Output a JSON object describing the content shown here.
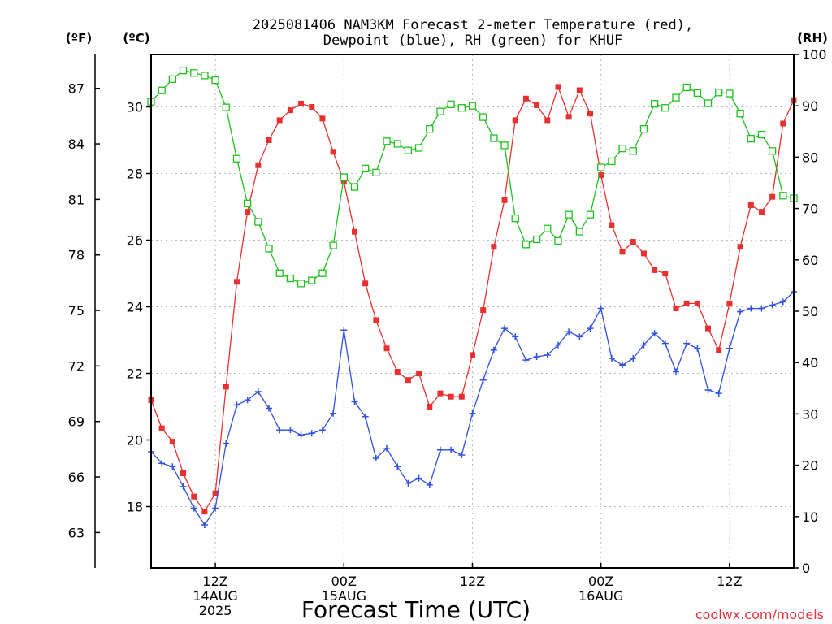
{
  "chart_data": {
    "type": "line",
    "title_lines": [
      "2025081406 NAM3KM Forecast 2-meter Temperature (red),",
      "Dewpoint (blue), RH (green) for KHUF"
    ],
    "xlabel": "Forecast Time (UTC)",
    "watermark": "coolwx.com/models",
    "x_ticks": [
      {
        "hour": 6,
        "lines": [
          "12Z",
          "14AUG",
          "2025"
        ]
      },
      {
        "hour": 18,
        "lines": [
          "00Z",
          "15AUG"
        ]
      },
      {
        "hour": 30,
        "lines": [
          "12Z"
        ]
      },
      {
        "hour": 42,
        "lines": [
          "00Z",
          "16AUG"
        ]
      },
      {
        "hour": 54,
        "lines": [
          "12Z"
        ]
      }
    ],
    "xlim": [
      0,
      60
    ],
    "y_left": {
      "unit_label": "(ºC)",
      "range": [
        16,
        31.5
      ],
      "ticks": [
        18,
        20,
        22,
        24,
        26,
        28,
        30
      ]
    },
    "y_far_left": {
      "unit_label": "(ºF)",
      "ticks": [
        63,
        66,
        69,
        72,
        75,
        78,
        81,
        84,
        87
      ]
    },
    "y_right": {
      "unit_label": "(RH)",
      "range": [
        0,
        100
      ],
      "ticks": [
        0,
        10,
        20,
        30,
        40,
        50,
        60,
        70,
        80,
        90,
        100
      ]
    },
    "grid": true,
    "series": [
      {
        "name": "Temperature",
        "color": "#e83030",
        "axis": "left",
        "marker": "filled-square",
        "values": [
          21.2,
          20.35,
          19.95,
          19.0,
          18.3,
          17.85,
          18.4,
          21.6,
          24.75,
          26.85,
          28.25,
          29.0,
          29.6,
          29.9,
          30.1,
          30.0,
          29.65,
          28.65,
          27.75,
          26.25,
          24.7,
          23.6,
          22.75,
          22.05,
          21.8,
          22.0,
          21.0,
          21.4,
          21.3,
          21.3,
          22.55,
          23.9,
          25.8,
          27.2,
          29.6,
          30.25,
          30.05,
          29.6,
          30.6,
          29.7,
          30.5,
          29.8,
          27.95,
          26.45,
          25.65,
          25.95,
          25.6,
          25.1,
          25.0,
          23.95,
          24.1,
          24.1,
          23.35,
          22.7,
          24.1,
          25.8,
          27.05,
          26.85,
          27.3,
          29.5,
          30.2
        ]
      },
      {
        "name": "Dewpoint",
        "color": "#3050e0",
        "axis": "left",
        "marker": "plus",
        "values": [
          19.65,
          19.3,
          19.2,
          18.6,
          17.95,
          17.45,
          17.95,
          19.9,
          21.05,
          21.2,
          21.45,
          20.95,
          20.3,
          20.3,
          20.15,
          20.2,
          20.3,
          20.8,
          23.3,
          21.15,
          20.7,
          19.45,
          19.75,
          19.2,
          18.7,
          18.85,
          18.65,
          19.7,
          19.7,
          19.55,
          20.8,
          21.8,
          22.7,
          23.35,
          23.1,
          22.4,
          22.5,
          22.55,
          22.85,
          23.25,
          23.1,
          23.35,
          23.95,
          22.45,
          22.25,
          22.45,
          22.85,
          23.2,
          22.9,
          22.05,
          22.9,
          22.75,
          21.5,
          21.4,
          22.75,
          23.85,
          23.95,
          23.95,
          24.05,
          24.15,
          24.45
        ]
      },
      {
        "name": "RH",
        "color": "#20c020",
        "axis": "right",
        "marker": "open-square",
        "values": [
          90.8,
          93.0,
          95.2,
          96.9,
          96.4,
          95.9,
          95.0,
          89.7,
          79.7,
          71.0,
          67.4,
          62.2,
          57.4,
          56.4,
          55.4,
          56.0,
          57.4,
          62.8,
          76.1,
          74.2,
          77.8,
          77.0,
          83.1,
          82.6,
          81.3,
          81.8,
          85.5,
          88.9,
          90.3,
          89.6,
          90.0,
          87.8,
          83.7,
          82.3,
          68.1,
          63.0,
          64.0,
          66.1,
          63.7,
          68.8,
          65.5,
          68.8,
          78.0,
          79.2,
          81.7,
          81.2,
          85.5,
          90.4,
          89.6,
          91.6,
          93.6,
          92.5,
          90.5,
          92.6,
          92.4,
          88.5,
          83.6,
          84.4,
          81.2,
          72.5,
          72.0
        ]
      }
    ]
  }
}
